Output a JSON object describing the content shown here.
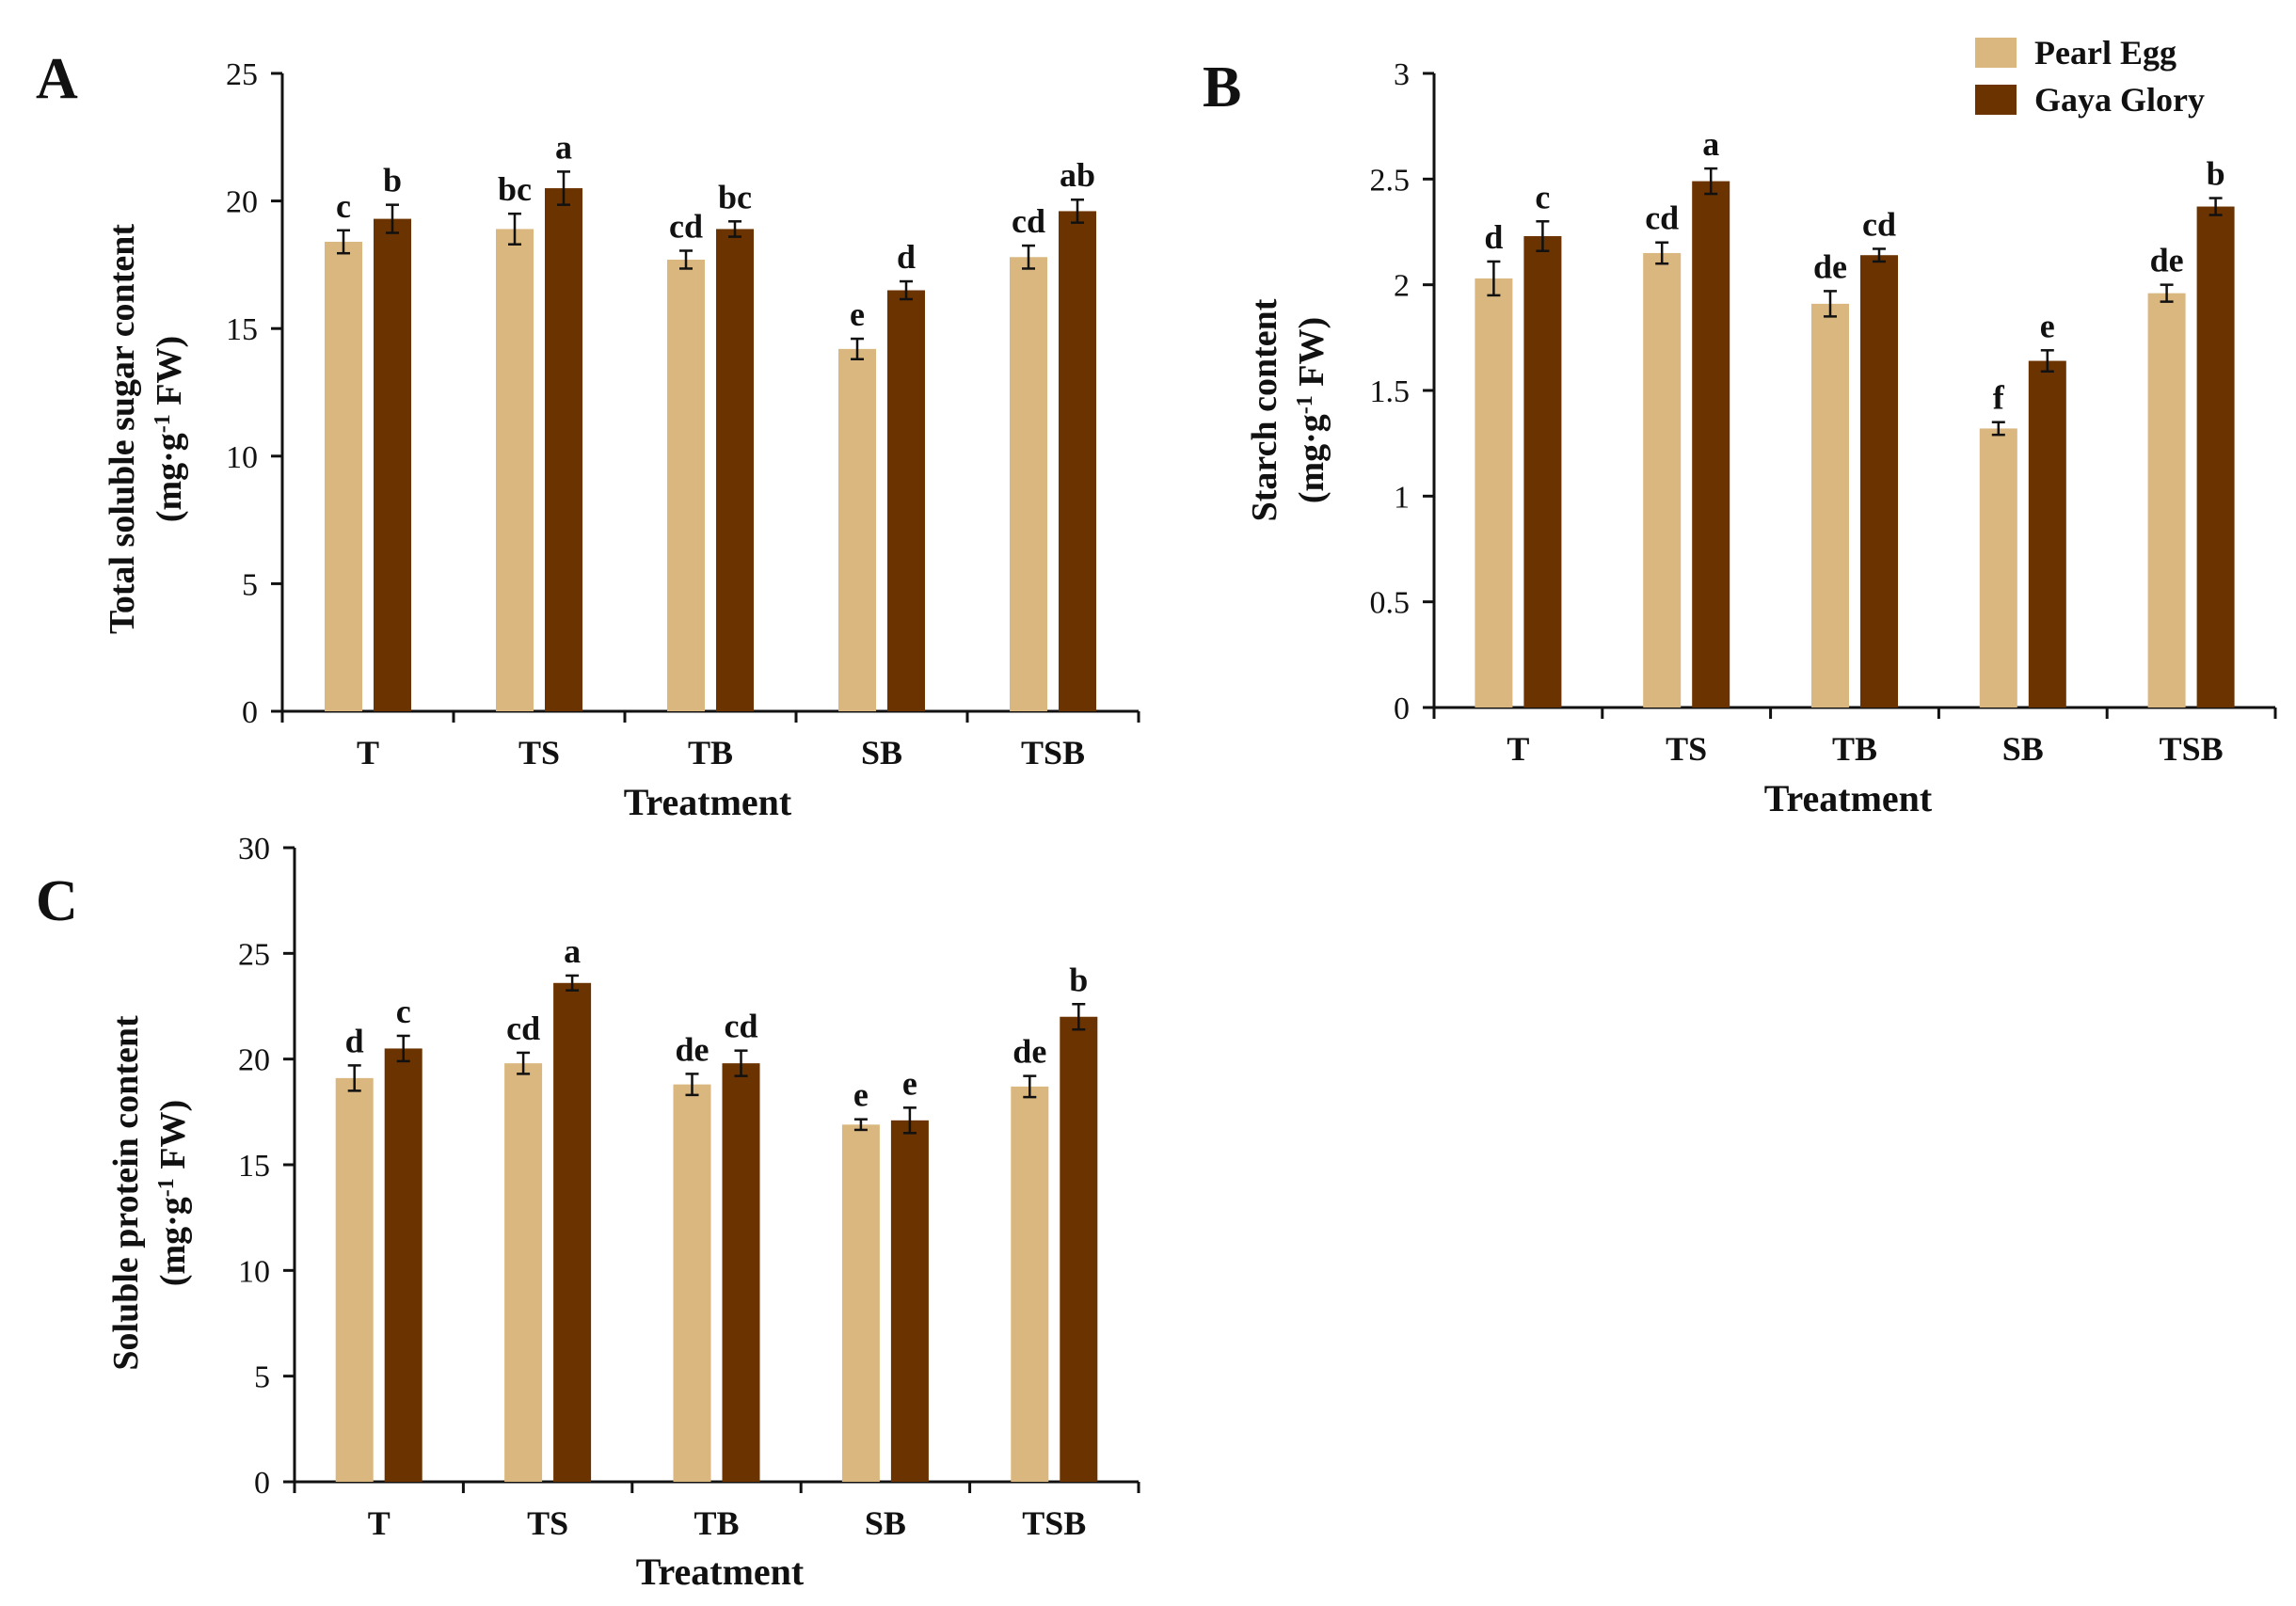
{
  "legend": {
    "series_names": [
      "Pearl Egg",
      "Gaya Glory"
    ],
    "colors": [
      "#dab77e",
      "#6b3300"
    ]
  },
  "chart_data": [
    {
      "panel": "A",
      "type": "bar",
      "categories": [
        "T",
        "TS",
        "TB",
        "SB",
        "TSB"
      ],
      "series": [
        {
          "name": "Pearl Egg",
          "values": [
            18.4,
            18.9,
            17.7,
            14.2,
            17.8
          ],
          "errors": [
            0.45,
            0.6,
            0.35,
            0.4,
            0.45
          ],
          "letters": [
            "c",
            "bc",
            "cd",
            "e",
            "cd"
          ]
        },
        {
          "name": "Gaya Glory",
          "values": [
            19.3,
            20.5,
            18.9,
            16.5,
            19.6
          ],
          "errors": [
            0.55,
            0.65,
            0.3,
            0.35,
            0.45
          ],
          "letters": [
            "b",
            "a",
            "bc",
            "d",
            "ab"
          ]
        }
      ],
      "xlabel": "Treatment",
      "ylabel_line1": "Total soluble sugar content",
      "ylabel_line2_pre": "(mg·g",
      "ylabel_line2_sup": "-1",
      "ylabel_line2_post": " FW)",
      "ylim": [
        0,
        25
      ],
      "yticks": [
        0,
        5,
        10,
        15,
        20,
        25
      ],
      "ytick_labels": [
        "0",
        "5",
        "10",
        "15",
        "20",
        "25"
      ],
      "grid": false
    },
    {
      "panel": "B",
      "type": "bar",
      "categories": [
        "T",
        "TS",
        "TB",
        "SB",
        "TSB"
      ],
      "series": [
        {
          "name": "Pearl Egg",
          "values": [
            2.03,
            2.15,
            1.91,
            1.32,
            1.96
          ],
          "errors": [
            0.08,
            0.05,
            0.06,
            0.03,
            0.04
          ],
          "letters": [
            "d",
            "cd",
            "de",
            "f",
            "de"
          ]
        },
        {
          "name": "Gaya Glory",
          "values": [
            2.23,
            2.49,
            2.14,
            1.64,
            2.37
          ],
          "errors": [
            0.07,
            0.06,
            0.03,
            0.05,
            0.04
          ],
          "letters": [
            "c",
            "a",
            "cd",
            "e",
            "b"
          ]
        }
      ],
      "xlabel": "Treatment",
      "ylabel_line1": "Starch content",
      "ylabel_line2_pre": "(mg·g",
      "ylabel_line2_sup": "-1",
      "ylabel_line2_post": " FW)",
      "ylim": [
        0,
        3
      ],
      "yticks": [
        0,
        0.5,
        1,
        1.5,
        2,
        2.5,
        3
      ],
      "ytick_labels": [
        "0",
        "0.5",
        "1",
        "1.5",
        "2",
        "2.5",
        "3"
      ],
      "grid": false
    },
    {
      "panel": "C",
      "type": "bar",
      "categories": [
        "T",
        "TS",
        "TB",
        "SB",
        "TSB"
      ],
      "series": [
        {
          "name": "Pearl Egg",
          "values": [
            19.1,
            19.8,
            18.8,
            16.9,
            18.7
          ],
          "errors": [
            0.6,
            0.5,
            0.5,
            0.25,
            0.5
          ],
          "letters": [
            "d",
            "cd",
            "de",
            "e",
            "de"
          ]
        },
        {
          "name": "Gaya Glory",
          "values": [
            20.5,
            23.6,
            19.8,
            17.1,
            22.0
          ],
          "errors": [
            0.6,
            0.35,
            0.6,
            0.6,
            0.6
          ],
          "letters": [
            "c",
            "a",
            "cd",
            "e",
            "b"
          ]
        }
      ],
      "xlabel": "Treatment",
      "ylabel_line1": "Soluble protein content",
      "ylabel_line2_pre": "(mg·g",
      "ylabel_line2_sup": "-1",
      "ylabel_line2_post": " FW)",
      "ylim": [
        0,
        30
      ],
      "yticks": [
        0,
        5,
        10,
        15,
        20,
        25,
        30
      ],
      "ytick_labels": [
        "0",
        "5",
        "10",
        "15",
        "20",
        "25",
        "30"
      ],
      "grid": false
    }
  ]
}
